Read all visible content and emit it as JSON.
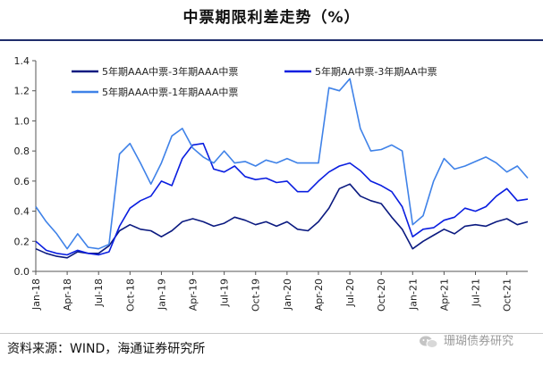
{
  "title": "中票期限利差走势（%）",
  "source": "资料来源：WIND，海通证券研究所",
  "watermark": "珊瑚债券研究",
  "colors": {
    "navy": "#0b1a80",
    "blue": "#0a1ee0",
    "light": "#3f82e8",
    "title_rule": "#1f2d6b"
  },
  "chart_data": {
    "type": "line",
    "title": "中票期限利差走势（%）",
    "xlabel": "",
    "ylabel": "",
    "ylim": [
      0,
      1.4
    ],
    "yticks": [
      "0.0",
      "0.2",
      "0.4",
      "0.6",
      "0.8",
      "1.0",
      "1.2",
      "1.4"
    ],
    "xticks": [
      "Jan-18",
      "Apr-18",
      "Jul-18",
      "Oct-18",
      "Jan-19",
      "Apr-19",
      "Jul-19",
      "Oct-19",
      "Jan-20",
      "Apr-20",
      "Jul-20",
      "Oct-20",
      "Jan-21",
      "Apr-21",
      "Jul-21",
      "Oct-21"
    ],
    "x": [
      "2018-01",
      "2018-02",
      "2018-03",
      "2018-04",
      "2018-05",
      "2018-06",
      "2018-07",
      "2018-08",
      "2018-09",
      "2018-10",
      "2018-11",
      "2018-12",
      "2019-01",
      "2019-02",
      "2019-03",
      "2019-04",
      "2019-05",
      "2019-06",
      "2019-07",
      "2019-08",
      "2019-09",
      "2019-10",
      "2019-11",
      "2019-12",
      "2020-01",
      "2020-02",
      "2020-03",
      "2020-04",
      "2020-05",
      "2020-06",
      "2020-07",
      "2020-08",
      "2020-09",
      "2020-10",
      "2020-11",
      "2020-12",
      "2021-01",
      "2021-02",
      "2021-03",
      "2021-04",
      "2021-05",
      "2021-06",
      "2021-07",
      "2021-08",
      "2021-09",
      "2021-10",
      "2021-11",
      "2021-12"
    ],
    "grid": false,
    "legend_position": "top-left",
    "series": [
      {
        "name": "5年期AAA中票-3年期AAA中票",
        "color": "#0b1a80",
        "values": [
          0.15,
          0.12,
          0.1,
          0.09,
          0.13,
          0.12,
          0.12,
          0.17,
          0.27,
          0.31,
          0.28,
          0.27,
          0.23,
          0.27,
          0.33,
          0.35,
          0.33,
          0.3,
          0.32,
          0.36,
          0.34,
          0.31,
          0.33,
          0.3,
          0.33,
          0.28,
          0.27,
          0.33,
          0.42,
          0.55,
          0.58,
          0.5,
          0.47,
          0.45,
          0.36,
          0.28,
          0.15,
          0.2,
          0.24,
          0.28,
          0.25,
          0.3,
          0.31,
          0.3,
          0.33,
          0.35,
          0.31,
          0.33
        ]
      },
      {
        "name": "5年期AA中票-3年期AA中票",
        "color": "#0a1ee0",
        "values": [
          0.2,
          0.14,
          0.12,
          0.11,
          0.14,
          0.12,
          0.11,
          0.13,
          0.3,
          0.42,
          0.47,
          0.5,
          0.6,
          0.57,
          0.75,
          0.84,
          0.85,
          0.68,
          0.66,
          0.7,
          0.63,
          0.61,
          0.62,
          0.59,
          0.6,
          0.53,
          0.53,
          0.6,
          0.66,
          0.7,
          0.72,
          0.67,
          0.6,
          0.57,
          0.53,
          0.43,
          0.23,
          0.28,
          0.29,
          0.34,
          0.36,
          0.42,
          0.4,
          0.43,
          0.5,
          0.55,
          0.47,
          0.48
        ]
      },
      {
        "name": "5年期AAA中票-1年期AAA中票",
        "color": "#3f82e8",
        "values": [
          0.43,
          0.33,
          0.25,
          0.15,
          0.25,
          0.16,
          0.15,
          0.18,
          0.78,
          0.85,
          0.72,
          0.58,
          0.72,
          0.9,
          0.95,
          0.82,
          0.76,
          0.72,
          0.8,
          0.72,
          0.73,
          0.7,
          0.74,
          0.72,
          0.75,
          0.72,
          0.72,
          0.72,
          1.22,
          1.2,
          1.28,
          0.95,
          0.8,
          0.81,
          0.84,
          0.8,
          0.31,
          0.37,
          0.6,
          0.75,
          0.68,
          0.7,
          0.73,
          0.76,
          0.72,
          0.66,
          0.7,
          0.62
        ]
      }
    ]
  }
}
